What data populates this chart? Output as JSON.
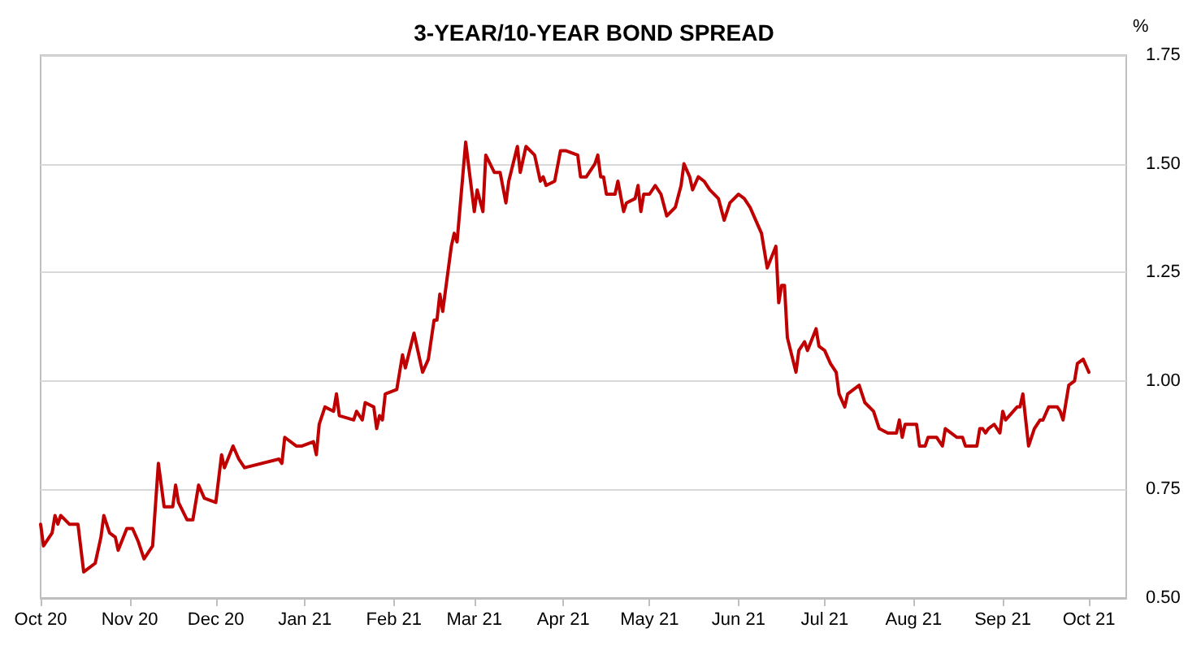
{
  "chart_data": {
    "type": "line",
    "title": "3-YEAR/10-YEAR BOND SPREAD",
    "ylabel": "%",
    "x": [
      "2020-10-01",
      "2020-10-02",
      "2020-10-05",
      "2020-10-06",
      "2020-10-07",
      "2020-10-08",
      "2020-10-11",
      "2020-10-14",
      "2020-10-16",
      "2020-10-20",
      "2020-10-22",
      "2020-10-23",
      "2020-10-25",
      "2020-10-27",
      "2020-10-28",
      "2020-10-31",
      "2020-11-02",
      "2020-11-04",
      "2020-11-06",
      "2020-11-09",
      "2020-11-11",
      "2020-11-13",
      "2020-11-16",
      "2020-11-17",
      "2020-11-18",
      "2020-11-21",
      "2020-11-23",
      "2020-11-25",
      "2020-11-27",
      "2020-12-01",
      "2020-12-03",
      "2020-12-04",
      "2020-12-07",
      "2020-12-09",
      "2020-12-11",
      "2020-12-23",
      "2020-12-24",
      "2020-12-25",
      "2020-12-29",
      "2020-12-31",
      "2021-01-04",
      "2021-01-05",
      "2021-01-06",
      "2021-01-08",
      "2021-01-11",
      "2021-01-12",
      "2021-01-13",
      "2021-01-18",
      "2021-01-19",
      "2021-01-21",
      "2021-01-22",
      "2021-01-25",
      "2021-01-26",
      "2021-01-27",
      "2021-01-28",
      "2021-01-29",
      "2021-02-02",
      "2021-02-04",
      "2021-02-05",
      "2021-02-08",
      "2021-02-11",
      "2021-02-13",
      "2021-02-15",
      "2021-02-16",
      "2021-02-17",
      "2021-02-18",
      "2021-02-21",
      "2021-02-22",
      "2021-02-23",
      "2021-02-26",
      "2021-03-01",
      "2021-03-02",
      "2021-03-04",
      "2021-03-05",
      "2021-03-08",
      "2021-03-10",
      "2021-03-12",
      "2021-03-13",
      "2021-03-16",
      "2021-03-17",
      "2021-03-19",
      "2021-03-22",
      "2021-03-24",
      "2021-03-25",
      "2021-03-26",
      "2021-03-29",
      "2021-03-31",
      "2021-04-02",
      "2021-04-06",
      "2021-04-07",
      "2021-04-09",
      "2021-04-12",
      "2021-04-13",
      "2021-04-14",
      "2021-04-15",
      "2021-04-16",
      "2021-04-19",
      "2021-04-20",
      "2021-04-22",
      "2021-04-23",
      "2021-04-26",
      "2021-04-27",
      "2021-04-28",
      "2021-04-29",
      "2021-05-01",
      "2021-05-03",
      "2021-05-05",
      "2021-05-07",
      "2021-05-10",
      "2021-05-12",
      "2021-05-13",
      "2021-05-15",
      "2021-05-16",
      "2021-05-18",
      "2021-05-20",
      "2021-05-22",
      "2021-05-25",
      "2021-05-27",
      "2021-05-29",
      "2021-06-01",
      "2021-06-03",
      "2021-06-05",
      "2021-06-07",
      "2021-06-09",
      "2021-06-11",
      "2021-06-14",
      "2021-06-15",
      "2021-06-16",
      "2021-06-17",
      "2021-06-18",
      "2021-06-21",
      "2021-06-22",
      "2021-06-24",
      "2021-06-25",
      "2021-06-28",
      "2021-06-29",
      "2021-07-01",
      "2021-07-03",
      "2021-07-05",
      "2021-07-06",
      "2021-07-08",
      "2021-07-09",
      "2021-07-13",
      "2021-07-15",
      "2021-07-18",
      "2021-07-20",
      "2021-07-23",
      "2021-07-26",
      "2021-07-27",
      "2021-07-28",
      "2021-07-29",
      "2021-08-02",
      "2021-08-03",
      "2021-08-05",
      "2021-08-06",
      "2021-08-09",
      "2021-08-11",
      "2021-08-12",
      "2021-08-14",
      "2021-08-16",
      "2021-08-18",
      "2021-08-19",
      "2021-08-23",
      "2021-08-24",
      "2021-08-25",
      "2021-08-26",
      "2021-08-27",
      "2021-08-29",
      "2021-08-31",
      "2021-09-01",
      "2021-09-02",
      "2021-09-06",
      "2021-09-07",
      "2021-09-08",
      "2021-09-10",
      "2021-09-12",
      "2021-09-14",
      "2021-09-15",
      "2021-09-17",
      "2021-09-20",
      "2021-09-21",
      "2021-09-22",
      "2021-09-24",
      "2021-09-26",
      "2021-09-27",
      "2021-09-29",
      "2021-10-01"
    ],
    "series": [
      {
        "color": "#c00000",
        "values": [
          0.67,
          0.62,
          0.65,
          0.69,
          0.67,
          0.69,
          0.67,
          0.67,
          0.56,
          0.58,
          0.64,
          0.69,
          0.65,
          0.64,
          0.61,
          0.66,
          0.66,
          0.63,
          0.59,
          0.62,
          0.81,
          0.71,
          0.71,
          0.76,
          0.72,
          0.68,
          0.68,
          0.76,
          0.73,
          0.72,
          0.83,
          0.8,
          0.85,
          0.82,
          0.8,
          0.82,
          0.81,
          0.87,
          0.85,
          0.85,
          0.86,
          0.83,
          0.9,
          0.94,
          0.93,
          0.97,
          0.92,
          0.91,
          0.93,
          0.91,
          0.95,
          0.94,
          0.89,
          0.92,
          0.91,
          0.97,
          0.98,
          1.06,
          1.03,
          1.11,
          1.02,
          1.05,
          1.14,
          1.14,
          1.2,
          1.16,
          1.31,
          1.34,
          1.32,
          1.55,
          1.39,
          1.44,
          1.39,
          1.52,
          1.48,
          1.48,
          1.41,
          1.46,
          1.54,
          1.48,
          1.54,
          1.52,
          1.46,
          1.47,
          1.45,
          1.46,
          1.53,
          1.53,
          1.52,
          1.47,
          1.47,
          1.5,
          1.52,
          1.47,
          1.47,
          1.43,
          1.43,
          1.46,
          1.39,
          1.41,
          1.42,
          1.45,
          1.39,
          1.43,
          1.43,
          1.45,
          1.43,
          1.38,
          1.4,
          1.45,
          1.5,
          1.47,
          1.44,
          1.47,
          1.46,
          1.44,
          1.42,
          1.37,
          1.41,
          1.43,
          1.42,
          1.4,
          1.37,
          1.34,
          1.26,
          1.31,
          1.18,
          1.22,
          1.22,
          1.1,
          1.02,
          1.07,
          1.09,
          1.07,
          1.12,
          1.08,
          1.07,
          1.04,
          1.02,
          0.97,
          0.94,
          0.97,
          0.99,
          0.95,
          0.93,
          0.89,
          0.88,
          0.88,
          0.91,
          0.87,
          0.9,
          0.9,
          0.85,
          0.85,
          0.87,
          0.87,
          0.85,
          0.89,
          0.88,
          0.87,
          0.87,
          0.85,
          0.85,
          0.89,
          0.89,
          0.88,
          0.89,
          0.9,
          0.88,
          0.93,
          0.91,
          0.94,
          0.94,
          0.97,
          0.85,
          0.89,
          0.91,
          0.91,
          0.94,
          0.94,
          0.93,
          0.91,
          0.99,
          1.0,
          1.04,
          1.05,
          1.02
        ]
      }
    ],
    "xlim": [
      "2020-10-01",
      "2021-10-14"
    ],
    "xticks": [
      {
        "value": "2020-10-01",
        "label": "Oct 20"
      },
      {
        "value": "2020-11-01",
        "label": "Nov 20"
      },
      {
        "value": "2020-12-01",
        "label": "Dec 20"
      },
      {
        "value": "2021-01-01",
        "label": "Jan 21"
      },
      {
        "value": "2021-02-01",
        "label": "Feb 21"
      },
      {
        "value": "2021-03-01",
        "label": "Mar 21"
      },
      {
        "value": "2021-04-01",
        "label": "Apr 21"
      },
      {
        "value": "2021-05-01",
        "label": "May 21"
      },
      {
        "value": "2021-06-01",
        "label": "Jun 21"
      },
      {
        "value": "2021-07-01",
        "label": "Jul 21"
      },
      {
        "value": "2021-08-01",
        "label": "Aug 21"
      },
      {
        "value": "2021-09-01",
        "label": "Sep 21"
      },
      {
        "value": "2021-10-01",
        "label": "Oct 21"
      }
    ],
    "ylim": [
      0.5,
      1.75
    ],
    "yticks": [
      {
        "value": 0.5,
        "label": "0.50"
      },
      {
        "value": 0.75,
        "label": "0.75"
      },
      {
        "value": 1,
        "label": "1.00"
      },
      {
        "value": 1.25,
        "label": "1.25"
      },
      {
        "value": 1.5,
        "label": "1.50"
      },
      {
        "value": 1.75,
        "label": "1.75"
      }
    ],
    "grid": "y",
    "marker": "none",
    "line_style": "solid"
  }
}
